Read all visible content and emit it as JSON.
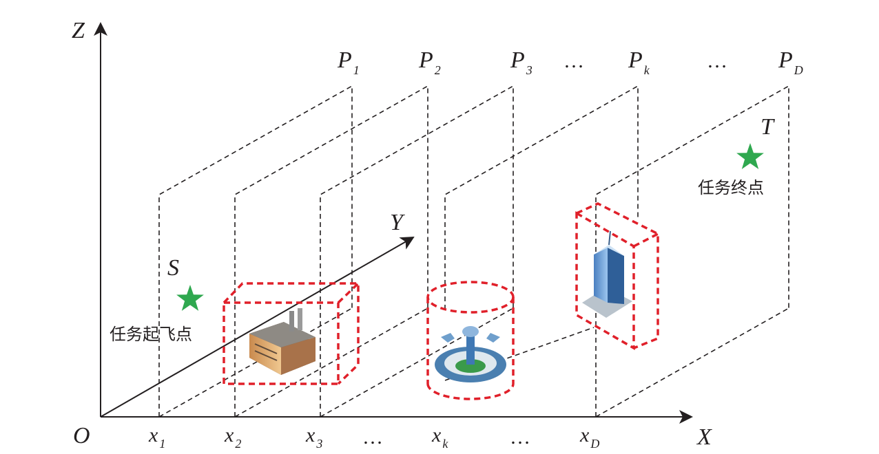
{
  "axes": {
    "origin": "O",
    "x": "X",
    "y": "Y",
    "z": "Z"
  },
  "planes": [
    {
      "main": "P",
      "sub": "1"
    },
    {
      "main": "P",
      "sub": "2"
    },
    {
      "main": "P",
      "sub": "3"
    },
    {
      "main": "P",
      "sub": "k"
    },
    {
      "main": "P",
      "sub": "D"
    }
  ],
  "x_ticks": [
    {
      "main": "x",
      "sub": "1"
    },
    {
      "main": "x",
      "sub": "2"
    },
    {
      "main": "x",
      "sub": "3"
    },
    {
      "main": "x",
      "sub": "k"
    },
    {
      "main": "x",
      "sub": "D"
    }
  ],
  "ellipsis": "…",
  "start": {
    "letter": "S",
    "label": "任务起飞点"
  },
  "target": {
    "letter": "T",
    "label": "任务终点"
  },
  "colors": {
    "star": "#2fa84f",
    "obstacle_box": "#e0202a",
    "line": "#231f20"
  },
  "icons": [
    "factory-icon",
    "airport-tower-icon",
    "skyscraper-icon"
  ]
}
